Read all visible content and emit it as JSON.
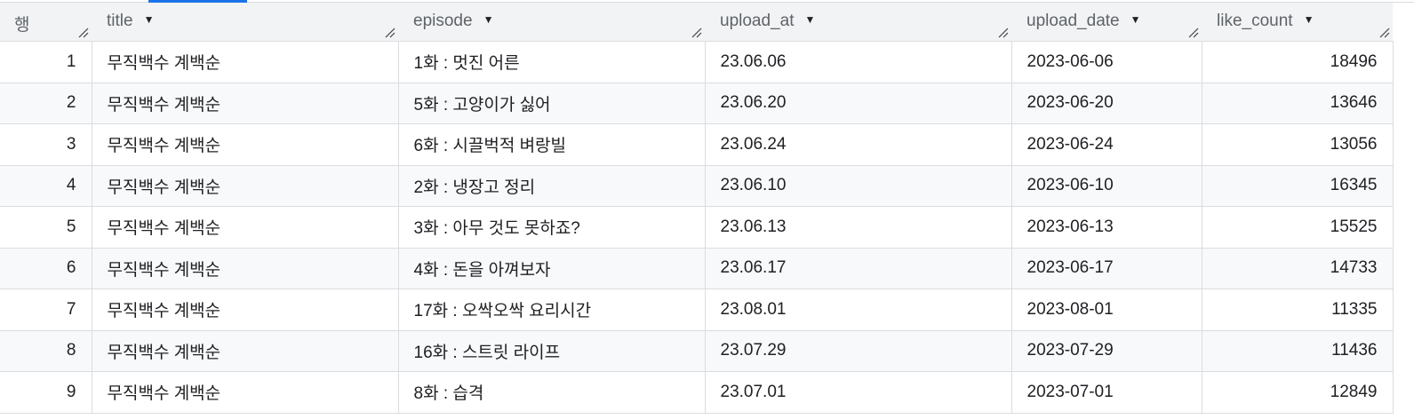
{
  "columns": [
    {
      "label": "행",
      "sortable": false
    },
    {
      "label": "title",
      "sortable": true
    },
    {
      "label": "episode",
      "sortable": true
    },
    {
      "label": "upload_at",
      "sortable": true
    },
    {
      "label": "upload_date",
      "sortable": true
    },
    {
      "label": "like_count",
      "sortable": true
    }
  ],
  "rows": [
    [
      "1",
      "무직백수 계백순",
      "1화 : 멋진 어른",
      "23.06.06",
      "2023-06-06",
      "18496"
    ],
    [
      "2",
      "무직백수 계백순",
      "5화 : 고양이가 싫어",
      "23.06.20",
      "2023-06-20",
      "13646"
    ],
    [
      "3",
      "무직백수 계백순",
      "6화 : 시끌벅적 벼랑빌",
      "23.06.24",
      "2023-06-24",
      "13056"
    ],
    [
      "4",
      "무직백수 계백순",
      "2화 : 냉장고 정리",
      "23.06.10",
      "2023-06-10",
      "16345"
    ],
    [
      "5",
      "무직백수 계백순",
      "3화 : 아무 것도 못하죠?",
      "23.06.13",
      "2023-06-13",
      "15525"
    ],
    [
      "6",
      "무직백수 계백순",
      "4화 : 돈을 아껴보자",
      "23.06.17",
      "2023-06-17",
      "14733"
    ],
    [
      "7",
      "무직백수 계백순",
      "17화 : 오싹오싹 요리시간",
      "23.08.01",
      "2023-08-01",
      "11335"
    ],
    [
      "8",
      "무직백수 계백순",
      "16화 : 스트릿 라이프",
      "23.07.29",
      "2023-07-29",
      "11436"
    ],
    [
      "9",
      "무직백수 계백순",
      "8화 : 습격",
      "23.07.01",
      "2023-07-01",
      "12849"
    ]
  ],
  "colors": {
    "accent": "#1a73e8",
    "header_bg": "#f1f3f4",
    "alt_row_bg": "#f8f9fa"
  }
}
